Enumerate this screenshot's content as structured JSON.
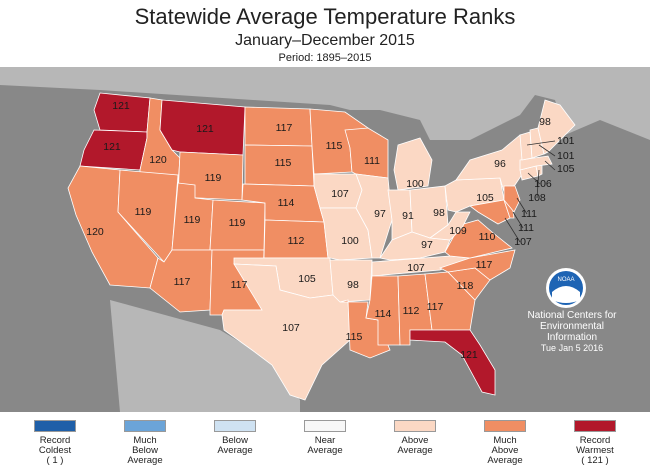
{
  "title": "Statewide Average Temperature Ranks",
  "subtitle": "January–December 2015",
  "period": "Period: 1895–2015",
  "credit": {
    "logo_text": "NOAA",
    "line1": "National Centers for",
    "line2": "Environmental",
    "line3": "Information",
    "date": "Tue Jan  5 2016"
  },
  "colors": {
    "record_coldest": "#1f5fa8",
    "much_below": "#6ba4d8",
    "below": "#cfe2f2",
    "near": "#f7f7f7",
    "above": "#fbd8c4",
    "much_above": "#f08e63",
    "record_warmest": "#b2182b",
    "background": "#888888",
    "land_other": "#bdbdbd"
  },
  "legend": [
    {
      "line1": "Record",
      "line2": "Coldest",
      "line3": "( 1 )",
      "color_key": "record_coldest"
    },
    {
      "line1": "Much",
      "line2": "Below",
      "line3": "Average",
      "color_key": "much_below"
    },
    {
      "line1": "Below",
      "line2": "Average",
      "line3": "",
      "color_key": "below"
    },
    {
      "line1": "Near",
      "line2": "Average",
      "line3": "",
      "color_key": "near"
    },
    {
      "line1": "Above",
      "line2": "Average",
      "line3": "",
      "color_key": "above"
    },
    {
      "line1": "Much",
      "line2": "Above",
      "line3": "Average",
      "color_key": "much_above"
    },
    {
      "line1": "Record",
      "line2": "Warmest",
      "line3": "( 121 )",
      "color_key": "record_warmest"
    }
  ],
  "states": [
    {
      "state": "WA",
      "rank": "121",
      "category": "record_warmest"
    },
    {
      "state": "OR",
      "rank": "121",
      "category": "record_warmest"
    },
    {
      "state": "MT",
      "rank": "121",
      "category": "record_warmest"
    },
    {
      "state": "FL",
      "rank": "121",
      "category": "record_warmest"
    },
    {
      "state": "ID",
      "rank": "120",
      "category": "much_above"
    },
    {
      "state": "CA",
      "rank": "120",
      "category": "much_above"
    },
    {
      "state": "NV",
      "rank": "119",
      "category": "much_above"
    },
    {
      "state": "UT",
      "rank": "119",
      "category": "much_above"
    },
    {
      "state": "CO",
      "rank": "119",
      "category": "much_above"
    },
    {
      "state": "WY",
      "rank": "119",
      "category": "much_above"
    },
    {
      "state": "AZ",
      "rank": "117",
      "category": "much_above"
    },
    {
      "state": "NM",
      "rank": "117",
      "category": "much_above"
    },
    {
      "state": "ND",
      "rank": "117",
      "category": "much_above"
    },
    {
      "state": "SD",
      "rank": "115",
      "category": "much_above"
    },
    {
      "state": "NE",
      "rank": "114",
      "category": "much_above"
    },
    {
      "state": "KS",
      "rank": "112",
      "category": "much_above"
    },
    {
      "state": "MN",
      "rank": "115",
      "category": "much_above"
    },
    {
      "state": "WI",
      "rank": "111",
      "category": "much_above"
    },
    {
      "state": "LA",
      "rank": "115",
      "category": "much_above"
    },
    {
      "state": "MS",
      "rank": "114",
      "category": "much_above"
    },
    {
      "state": "AL",
      "rank": "112",
      "category": "much_above"
    },
    {
      "state": "GA",
      "rank": "117",
      "category": "much_above"
    },
    {
      "state": "SC",
      "rank": "118",
      "category": "much_above"
    },
    {
      "state": "NC",
      "rank": "117",
      "category": "much_above"
    },
    {
      "state": "VA",
      "rank": "110",
      "category": "much_above"
    },
    {
      "state": "NJ",
      "rank": "111",
      "category": "much_above"
    },
    {
      "state": "DE",
      "rank": "111",
      "category": "much_above"
    },
    {
      "state": "MD",
      "rank": "107",
      "category": "much_above"
    },
    {
      "state": "TX",
      "rank": "107",
      "category": "above"
    },
    {
      "state": "OK",
      "rank": "105",
      "category": "above"
    },
    {
      "state": "AR",
      "rank": "98",
      "category": "above"
    },
    {
      "state": "TN",
      "rank": "107",
      "category": "above"
    },
    {
      "state": "KY",
      "rank": "97",
      "category": "above"
    },
    {
      "state": "WV",
      "rank": "109",
      "category": "above"
    },
    {
      "state": "OH",
      "rank": "98",
      "category": "above"
    },
    {
      "state": "IN",
      "rank": "91",
      "category": "above"
    },
    {
      "state": "IL",
      "rank": "97",
      "category": "above"
    },
    {
      "state": "MO",
      "rank": "100",
      "category": "above"
    },
    {
      "state": "IA",
      "rank": "107",
      "category": "above"
    },
    {
      "state": "MI",
      "rank": "100",
      "category": "above"
    },
    {
      "state": "PA",
      "rank": "105",
      "category": "above"
    },
    {
      "state": "NY",
      "rank": "96",
      "category": "above"
    },
    {
      "state": "ME",
      "rank": "98",
      "category": "above"
    },
    {
      "state": "VT",
      "rank": "101",
      "category": "above"
    },
    {
      "state": "NH",
      "rank": "101",
      "category": "above"
    },
    {
      "state": "MA",
      "rank": "105",
      "category": "above"
    },
    {
      "state": "CT",
      "rank": "106",
      "category": "above"
    },
    {
      "state": "RI",
      "rank": "108",
      "category": "above"
    }
  ]
}
